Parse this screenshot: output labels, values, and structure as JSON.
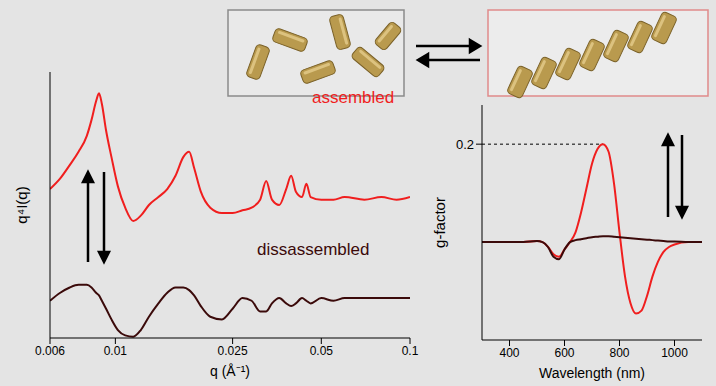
{
  "chart_data": [
    {
      "type": "line",
      "x_label": "q (Å⁻¹)",
      "y_label": "q⁴I(q)",
      "log": "x",
      "grid": false,
      "tick_labels": "x",
      "xlim": [
        0.006,
        0.1
      ],
      "xticks": [
        0.006,
        0.01,
        0.025,
        0.05,
        0.1
      ],
      "ylim": [
        0,
        10
      ],
      "x": [
        0.006,
        0.0065,
        0.007,
        0.0075,
        0.008,
        0.0083,
        0.0086,
        0.0088,
        0.009,
        0.0093,
        0.0097,
        0.0102,
        0.0108,
        0.0115,
        0.0122,
        0.013,
        0.014,
        0.015,
        0.016,
        0.017,
        0.0178,
        0.0185,
        0.0195,
        0.021,
        0.023,
        0.025,
        0.027,
        0.029,
        0.031,
        0.0325,
        0.034,
        0.036,
        0.038,
        0.0395,
        0.041,
        0.043,
        0.0445,
        0.046,
        0.05,
        0.055,
        0.06,
        0.07,
        0.08,
        0.09,
        0.1
      ],
      "series": [
        {
          "name": "assembled",
          "color": "#f01e1e",
          "values": [
            5.6,
            6.0,
            6.5,
            7.0,
            7.6,
            8.2,
            8.9,
            9.2,
            8.8,
            7.8,
            6.8,
            5.7,
            4.9,
            4.4,
            4.6,
            5.0,
            5.3,
            5.6,
            6.1,
            6.8,
            7.0,
            6.4,
            5.5,
            4.9,
            4.7,
            4.7,
            4.8,
            4.9,
            5.2,
            5.9,
            5.2,
            5.0,
            5.6,
            6.1,
            5.5,
            5.3,
            5.8,
            5.3,
            5.2,
            5.2,
            5.3,
            5.2,
            5.3,
            5.2,
            5.3
          ]
        },
        {
          "name": "dissassembled",
          "color": "#3b0a0a",
          "values": [
            1.4,
            1.7,
            1.9,
            2.0,
            2.0,
            1.9,
            1.7,
            1.6,
            1.4,
            1.1,
            0.7,
            0.3,
            0.1,
            0.05,
            0.3,
            0.8,
            1.3,
            1.7,
            1.9,
            1.9,
            1.8,
            1.6,
            1.2,
            0.8,
            0.7,
            1.1,
            1.5,
            1.4,
            1.0,
            1.0,
            1.3,
            1.5,
            1.3,
            1.2,
            1.3,
            1.5,
            1.4,
            1.3,
            1.5,
            1.4,
            1.5,
            1.5,
            1.5,
            1.5,
            1.5
          ]
        }
      ]
    },
    {
      "type": "line",
      "x_label": "Wavelength (nm)",
      "y_label": "g-factor",
      "grid": false,
      "xlim": [
        300,
        1100
      ],
      "xticks": [
        400,
        600,
        800,
        1000
      ],
      "ylim": [
        -0.2,
        0.28
      ],
      "yticks": [
        0.2
      ],
      "x": [
        300,
        350,
        400,
        450,
        500,
        520,
        540,
        560,
        580,
        600,
        620,
        640,
        660,
        680,
        700,
        720,
        740,
        760,
        780,
        800,
        820,
        840,
        860,
        880,
        900,
        920,
        940,
        960,
        980,
        1000,
        1050,
        1100
      ],
      "series": [
        {
          "color": "#f01e1e",
          "values": [
            0,
            0,
            0,
            0,
            0.002,
            0.0,
            -0.01,
            -0.025,
            -0.03,
            -0.015,
            0.0,
            0.02,
            0.06,
            0.11,
            0.16,
            0.19,
            0.2,
            0.185,
            0.12,
            0.02,
            -0.07,
            -0.125,
            -0.146,
            -0.14,
            -0.11,
            -0.07,
            -0.04,
            -0.02,
            -0.01,
            -0.005,
            0,
            0
          ]
        },
        {
          "color": "#3b0a0a",
          "values": [
            0,
            0,
            0,
            0,
            0.002,
            0.0,
            -0.01,
            -0.03,
            -0.035,
            -0.015,
            0,
            0.004,
            0.006,
            0.008,
            0.01,
            0.011,
            0.012,
            0.012,
            0.011,
            0.01,
            0.009,
            0.008,
            0.007,
            0.006,
            0.005,
            0.004,
            0.003,
            0.002,
            0.001,
            0.001,
            0,
            0
          ]
        }
      ]
    }
  ]
}
